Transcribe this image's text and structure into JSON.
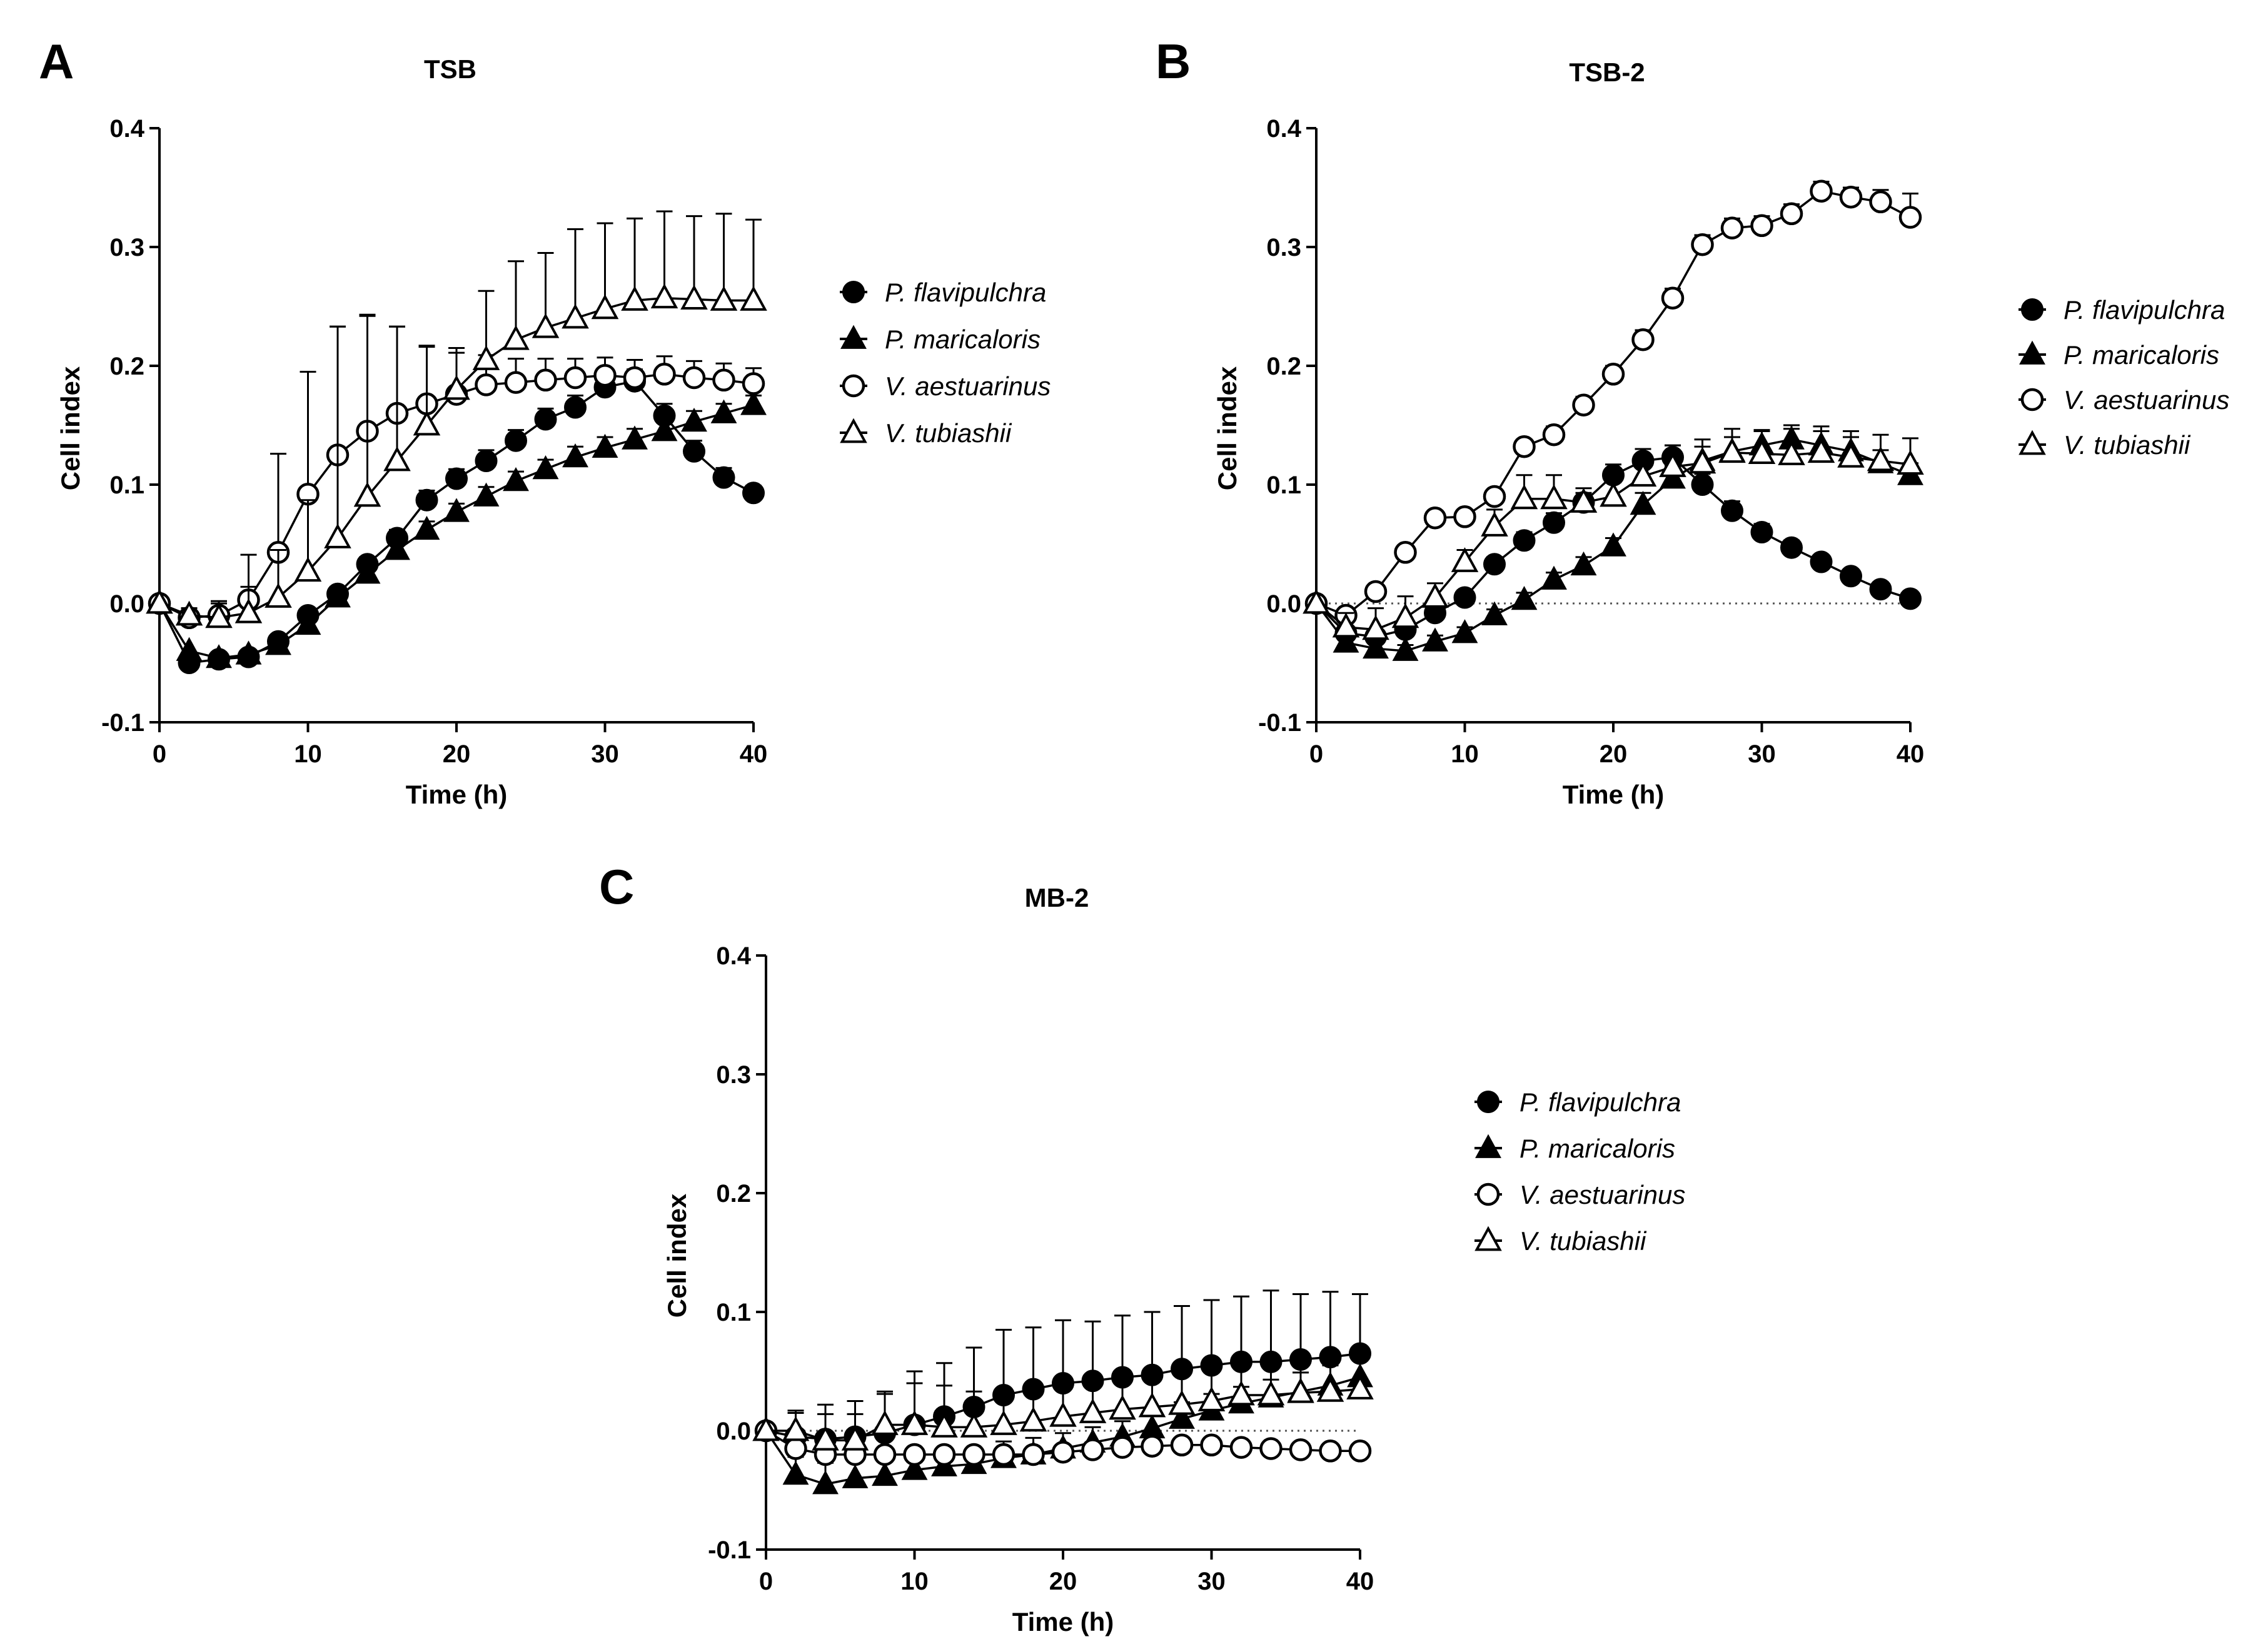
{
  "figure": {
    "panels": [
      {
        "letter": "A",
        "title": "TSB",
        "xlabel": "Time (h)",
        "ylabel": "Cell index",
        "zero_line": false
      },
      {
        "letter": "B",
        "title": "TSB-2",
        "xlabel": "Time (h)",
        "ylabel": "Cell index",
        "zero_line": true
      },
      {
        "letter": "C",
        "title": "MB-2",
        "xlabel": "Time (h)",
        "ylabel": "Cell index",
        "zero_line": true
      }
    ]
  },
  "chart_data": [
    {
      "type": "line",
      "title": "TSB",
      "xlabel": "Time (h)",
      "ylabel": "Cell index",
      "xlim": [
        0,
        40
      ],
      "ylim": [
        -0.1,
        0.4
      ],
      "xticks": [
        "0",
        "10",
        "20",
        "30",
        "40"
      ],
      "yticks": [
        "-0.1",
        "0.0",
        "0.1",
        "0.2",
        "0.3",
        "0.4"
      ],
      "grid": false,
      "legend": "right",
      "x": [
        0,
        2,
        4,
        6,
        8,
        10,
        12,
        14,
        16,
        18,
        20,
        22,
        24,
        26,
        28,
        30,
        32,
        34,
        36,
        38,
        40
      ],
      "series": [
        {
          "name": "P. flavipulchra",
          "marker": "filled-circle",
          "values": [
            0.0,
            -0.05,
            -0.047,
            -0.045,
            -0.032,
            -0.01,
            0.008,
            0.033,
            0.055,
            0.087,
            0.105,
            0.12,
            0.137,
            0.155,
            0.165,
            0.182,
            0.187,
            0.158,
            0.128,
            0.106,
            0.093
          ],
          "errors": [
            0.004,
            0.004,
            0.004,
            0.004,
            0.005,
            0.005,
            0.006,
            0.006,
            0.007,
            0.008,
            0.008,
            0.009,
            0.009,
            0.009,
            0.01,
            0.01,
            0.01,
            0.01,
            0.009,
            0.008,
            0.006
          ]
        },
        {
          "name": "P. maricaloris",
          "marker": "filled-triangle",
          "values": [
            0.0,
            -0.04,
            -0.046,
            -0.043,
            -0.035,
            -0.018,
            0.005,
            0.025,
            0.045,
            0.062,
            0.077,
            0.09,
            0.103,
            0.113,
            0.123,
            0.131,
            0.138,
            0.145,
            0.153,
            0.16,
            0.167
          ],
          "errors": [
            0.003,
            0.004,
            0.004,
            0.004,
            0.004,
            0.005,
            0.005,
            0.006,
            0.006,
            0.007,
            0.007,
            0.008,
            0.008,
            0.008,
            0.009,
            0.009,
            0.009,
            0.009,
            0.009,
            0.008,
            0.008
          ]
        },
        {
          "name": "V. aestuarinus",
          "marker": "open-circle",
          "values": [
            0.0,
            -0.012,
            -0.01,
            0.003,
            0.043,
            0.092,
            0.125,
            0.145,
            0.16,
            0.168,
            0.176,
            0.184,
            0.186,
            0.188,
            0.19,
            0.192,
            0.19,
            0.193,
            0.19,
            0.188,
            0.185
          ],
          "errors": [
            0.003,
            0.008,
            0.012,
            0.038,
            0.083,
            0.103,
            0.108,
            0.098,
            0.073,
            0.048,
            0.035,
            0.025,
            0.02,
            0.018,
            0.016,
            0.015,
            0.015,
            0.015,
            0.014,
            0.014,
            0.013
          ]
        },
        {
          "name": "V. tubiashii",
          "marker": "open-triangle",
          "values": [
            0.0,
            -0.01,
            -0.012,
            -0.008,
            0.005,
            0.027,
            0.055,
            0.09,
            0.12,
            0.15,
            0.18,
            0.205,
            0.222,
            0.232,
            0.24,
            0.248,
            0.255,
            0.257,
            0.256,
            0.255,
            0.255
          ],
          "errors": [
            0.003,
            0.006,
            0.012,
            0.022,
            0.04,
            0.06,
            0.178,
            0.152,
            0.113,
            0.067,
            0.035,
            0.058,
            0.066,
            0.063,
            0.075,
            0.072,
            0.069,
            0.073,
            0.07,
            0.073,
            0.068
          ]
        }
      ]
    },
    {
      "type": "line",
      "title": "TSB-2",
      "xlabel": "Time (h)",
      "ylabel": "Cell index",
      "xlim": [
        0,
        40
      ],
      "ylim": [
        -0.1,
        0.4
      ],
      "xticks": [
        "0",
        "10",
        "20",
        "30",
        "40"
      ],
      "yticks": [
        "-0.1",
        "0.0",
        "0.1",
        "0.2",
        "0.3",
        "0.4"
      ],
      "grid": false,
      "legend": "right",
      "x": [
        0,
        2,
        4,
        6,
        8,
        10,
        12,
        14,
        16,
        18,
        20,
        22,
        24,
        26,
        28,
        30,
        32,
        34,
        36,
        38,
        40
      ],
      "series": [
        {
          "name": "P. flavipulchra",
          "marker": "filled-circle",
          "values": [
            0.0,
            -0.025,
            -0.028,
            -0.022,
            -0.008,
            0.005,
            0.033,
            0.053,
            0.068,
            0.085,
            0.108,
            0.12,
            0.123,
            0.1,
            0.078,
            0.06,
            0.047,
            0.035,
            0.023,
            0.012,
            0.004
          ],
          "errors": [
            0.003,
            0.004,
            0.005,
            0.005,
            0.005,
            0.006,
            0.006,
            0.007,
            0.008,
            0.008,
            0.009,
            0.01,
            0.01,
            0.009,
            0.008,
            0.007,
            0.006,
            0.005,
            0.004,
            0.004,
            0.003
          ]
        },
        {
          "name": "P. maricaloris",
          "marker": "filled-triangle",
          "values": [
            0.0,
            -0.033,
            -0.038,
            -0.04,
            -0.032,
            -0.025,
            -0.01,
            0.003,
            0.02,
            0.032,
            0.048,
            0.083,
            0.105,
            0.12,
            0.128,
            0.133,
            0.138,
            0.133,
            0.128,
            0.118,
            0.108
          ],
          "errors": [
            0.003,
            0.004,
            0.005,
            0.005,
            0.005,
            0.005,
            0.005,
            0.006,
            0.006,
            0.007,
            0.007,
            0.01,
            0.011,
            0.012,
            0.012,
            0.012,
            0.012,
            0.012,
            0.012,
            0.011,
            0.01
          ]
        },
        {
          "name": "V. aestuarinus",
          "marker": "open-circle",
          "values": [
            0.0,
            -0.01,
            0.01,
            0.043,
            0.072,
            0.073,
            0.09,
            0.132,
            0.142,
            0.167,
            0.193,
            0.222,
            0.257,
            0.302,
            0.316,
            0.318,
            0.328,
            0.347,
            0.342,
            0.338,
            0.325
          ],
          "errors": [
            0.003,
            0.004,
            0.004,
            0.005,
            0.005,
            0.005,
            0.006,
            0.006,
            0.007,
            0.007,
            0.007,
            0.008,
            0.008,
            0.008,
            0.008,
            0.008,
            0.008,
            0.008,
            0.008,
            0.01,
            0.02
          ]
        },
        {
          "name": "V. tubiashii",
          "marker": "open-triangle",
          "values": [
            0.0,
            -0.02,
            -0.022,
            -0.012,
            0.005,
            0.035,
            0.065,
            0.088,
            0.088,
            0.085,
            0.09,
            0.107,
            0.115,
            0.118,
            0.127,
            0.126,
            0.125,
            0.127,
            0.123,
            0.12,
            0.117
          ],
          "errors": [
            0.003,
            0.012,
            0.018,
            0.018,
            0.012,
            0.01,
            0.014,
            0.02,
            0.02,
            0.012,
            0.012,
            0.015,
            0.018,
            0.02,
            0.02,
            0.02,
            0.022,
            0.022,
            0.022,
            0.022,
            0.022
          ]
        }
      ]
    },
    {
      "type": "line",
      "title": "MB-2",
      "xlabel": "Time (h)",
      "ylabel": "Cell index",
      "xlim": [
        0,
        40
      ],
      "ylim": [
        -0.1,
        0.4
      ],
      "xticks": [
        "0",
        "10",
        "20",
        "30",
        "40"
      ],
      "yticks": [
        "-0.1",
        "0.0",
        "0.1",
        "0.2",
        "0.3",
        "0.4"
      ],
      "grid": false,
      "legend": "right",
      "x": [
        0,
        2,
        4,
        6,
        8,
        10,
        12,
        14,
        16,
        18,
        20,
        22,
        24,
        26,
        28,
        30,
        32,
        34,
        36,
        38,
        40
      ],
      "series": [
        {
          "name": "P. flavipulchra",
          "marker": "filled-circle",
          "values": [
            0.0,
            -0.005,
            -0.007,
            -0.005,
            -0.002,
            0.005,
            0.012,
            0.02,
            0.03,
            0.035,
            0.04,
            0.042,
            0.045,
            0.047,
            0.052,
            0.055,
            0.058,
            0.058,
            0.06,
            0.062,
            0.065
          ],
          "errors": [
            0.003,
            0.022,
            0.029,
            0.03,
            0.033,
            0.045,
            0.045,
            0.05,
            0.055,
            0.052,
            0.053,
            0.05,
            0.052,
            0.053,
            0.053,
            0.055,
            0.055,
            0.06,
            0.055,
            0.055,
            0.05
          ]
        },
        {
          "name": "P. maricaloris",
          "marker": "filled-triangle",
          "values": [
            0.0,
            -0.037,
            -0.045,
            -0.04,
            -0.038,
            -0.033,
            -0.03,
            -0.028,
            -0.023,
            -0.02,
            -0.015,
            -0.01,
            -0.005,
            0.002,
            0.01,
            0.017,
            0.023,
            0.028,
            0.033,
            0.038,
            0.045
          ],
          "errors": [
            0.003,
            0.015,
            0.018,
            0.015,
            0.014,
            0.013,
            0.014,
            0.014,
            0.014,
            0.014,
            0.013,
            0.013,
            0.013,
            0.013,
            0.014,
            0.014,
            0.014,
            0.015,
            0.016,
            0.017,
            0.018
          ]
        },
        {
          "name": "V. aestuarinus",
          "marker": "open-circle",
          "values": [
            0.0,
            -0.015,
            -0.02,
            -0.02,
            -0.02,
            -0.02,
            -0.02,
            -0.02,
            -0.02,
            -0.02,
            -0.018,
            -0.016,
            -0.014,
            -0.013,
            -0.012,
            -0.012,
            -0.014,
            -0.015,
            -0.016,
            -0.017,
            -0.017
          ],
          "errors": [
            0.003,
            0.004,
            0.004,
            0.004,
            0.004,
            0.004,
            0.004,
            0.004,
            0.004,
            0.004,
            0.004,
            0.004,
            0.004,
            0.004,
            0.004,
            0.004,
            0.004,
            0.004,
            0.004,
            0.004,
            0.004
          ]
        },
        {
          "name": "V. tubiashii",
          "marker": "open-triangle",
          "values": [
            0.0,
            0.0,
            -0.008,
            -0.008,
            0.005,
            0.005,
            0.003,
            0.003,
            0.005,
            0.008,
            0.012,
            0.015,
            0.018,
            0.02,
            0.022,
            0.025,
            0.03,
            0.03,
            0.032,
            0.033,
            0.035
          ],
          "errors": [
            0.003,
            0.015,
            0.022,
            0.022,
            0.028,
            0.035,
            0.035,
            0.03,
            0.03,
            0.028,
            0.028,
            0.025,
            0.025,
            0.025,
            0.025,
            0.028,
            0.025,
            0.025,
            0.025,
            0.025,
            0.025
          ]
        }
      ]
    }
  ]
}
